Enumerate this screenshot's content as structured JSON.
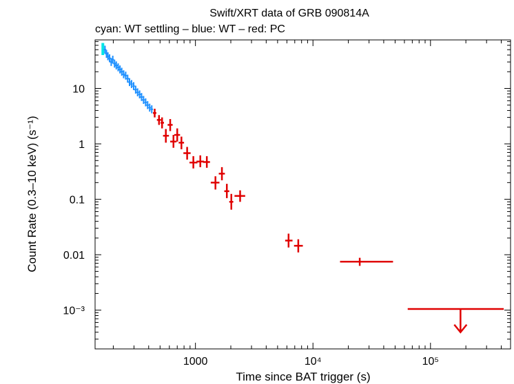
{
  "chart_data": {
    "type": "scatter",
    "title": "Swift/XRT data of GRB 090814A",
    "subtitle": "cyan: WT settling – blue: WT – red: PC",
    "xlabel": "Time since BAT trigger (s)",
    "ylabel": "Count Rate (0.3–10 keV) (s⁻¹)",
    "x_scale": "log",
    "y_scale": "log",
    "xlim": [
      140,
      480000
    ],
    "ylim": [
      0.0002,
      75
    ],
    "grid": false,
    "x_ticks": [
      {
        "value": 1000,
        "label": "1000"
      },
      {
        "value": 10000,
        "label": "10⁴"
      },
      {
        "value": 100000,
        "label": "10⁵"
      }
    ],
    "y_ticks": [
      {
        "value": 10,
        "label": "10"
      },
      {
        "value": 1,
        "label": "1"
      },
      {
        "value": 0.1,
        "label": "0.1"
      },
      {
        "value": 0.01,
        "label": "0.01"
      },
      {
        "value": 0.001,
        "label": "10⁻³"
      }
    ],
    "series": [
      {
        "name": "WT settling",
        "color": "#00e5e5",
        "points": [
          {
            "x": 163,
            "y": 52,
            "xerr": [
              160,
              166
            ],
            "yerr": [
              40,
              66
            ]
          }
        ]
      },
      {
        "name": "WT",
        "color": "#1e90ff",
        "points": [
          {
            "x": 170,
            "y": 50
          },
          {
            "x": 175,
            "y": 42
          },
          {
            "x": 180,
            "y": 38
          },
          {
            "x": 186,
            "y": 35
          },
          {
            "x": 192,
            "y": 30
          },
          {
            "x": 198,
            "y": 33
          },
          {
            "x": 205,
            "y": 28
          },
          {
            "x": 212,
            "y": 26
          },
          {
            "x": 220,
            "y": 24
          },
          {
            "x": 228,
            "y": 22
          },
          {
            "x": 236,
            "y": 20
          },
          {
            "x": 245,
            "y": 18
          },
          {
            "x": 255,
            "y": 17
          },
          {
            "x": 265,
            "y": 15
          },
          {
            "x": 275,
            "y": 13
          },
          {
            "x": 286,
            "y": 12
          },
          {
            "x": 298,
            "y": 11
          },
          {
            "x": 310,
            "y": 9.5
          },
          {
            "x": 322,
            "y": 8.5
          },
          {
            "x": 335,
            "y": 7.8
          },
          {
            "x": 348,
            "y": 7
          },
          {
            "x": 362,
            "y": 6.2
          },
          {
            "x": 377,
            "y": 5.6
          },
          {
            "x": 392,
            "y": 5
          },
          {
            "x": 408,
            "y": 4.5
          },
          {
            "x": 425,
            "y": 4.2
          }
        ]
      },
      {
        "name": "PC",
        "color": "#e00000",
        "points": [
          {
            "x": 450,
            "y": 3.6,
            "xerr": [
              435,
              465
            ],
            "yerr": [
              3.0,
              4.3
            ]
          },
          {
            "x": 490,
            "y": 2.7,
            "xerr": [
              470,
              510
            ],
            "yerr": [
              2.2,
              3.3
            ]
          },
          {
            "x": 520,
            "y": 2.4,
            "xerr": [
              505,
              540
            ],
            "yerr": [
              1.9,
              3.0
            ]
          },
          {
            "x": 560,
            "y": 1.4,
            "xerr": [
              530,
              595
            ],
            "yerr": [
              1.05,
              1.85
            ]
          },
          {
            "x": 610,
            "y": 2.2,
            "xerr": [
              580,
              640
            ],
            "yerr": [
              1.7,
              2.8
            ]
          },
          {
            "x": 650,
            "y": 1.1,
            "xerr": [
              610,
              690
            ],
            "yerr": [
              0.85,
              1.45
            ]
          },
          {
            "x": 700,
            "y": 1.45,
            "xerr": [
              660,
              740
            ],
            "yerr": [
              1.1,
              1.9
            ]
          },
          {
            "x": 760,
            "y": 1.05,
            "xerr": [
              720,
              800
            ],
            "yerr": [
              0.8,
              1.35
            ]
          },
          {
            "x": 850,
            "y": 0.68,
            "xerr": [
              790,
              910
            ],
            "yerr": [
              0.52,
              0.88
            ]
          },
          {
            "x": 960,
            "y": 0.46,
            "xerr": [
              890,
              1040
            ],
            "yerr": [
              0.36,
              0.6
            ]
          },
          {
            "x": 1100,
            "y": 0.48,
            "xerr": [
              1020,
              1180
            ],
            "yerr": [
              0.38,
              0.62
            ]
          },
          {
            "x": 1250,
            "y": 0.47,
            "xerr": [
              1160,
              1330
            ],
            "yerr": [
              0.37,
              0.6
            ]
          },
          {
            "x": 1480,
            "y": 0.2,
            "xerr": [
              1350,
              1600
            ],
            "yerr": [
              0.15,
              0.26
            ]
          },
          {
            "x": 1680,
            "y": 0.29,
            "xerr": [
              1580,
              1780
            ],
            "yerr": [
              0.22,
              0.38
            ]
          },
          {
            "x": 1850,
            "y": 0.14,
            "xerr": [
              1760,
              1940
            ],
            "yerr": [
              0.105,
              0.19
            ]
          },
          {
            "x": 2020,
            "y": 0.09,
            "xerr": [
              1940,
              2100
            ],
            "yerr": [
              0.065,
              0.125
            ]
          },
          {
            "x": 2400,
            "y": 0.115,
            "xerr": [
              2150,
              2650
            ],
            "yerr": [
              0.09,
              0.145
            ]
          },
          {
            "x": 6200,
            "y": 0.018,
            "xerr": [
              5800,
              6700
            ],
            "yerr": [
              0.0135,
              0.024
            ]
          },
          {
            "x": 7500,
            "y": 0.0145,
            "xerr": [
              6900,
              8200
            ],
            "yerr": [
              0.011,
              0.019
            ]
          },
          {
            "x": 25000,
            "y": 0.0075,
            "xerr": [
              17000,
              48000
            ],
            "yerr": [
              0.0063,
              0.0088
            ]
          }
        ],
        "upper_limits": [
          {
            "x": 180000,
            "y": 0.00105,
            "xerr": [
              64000,
              420000
            ],
            "arrow_to": 0.0004
          }
        ]
      }
    ]
  }
}
